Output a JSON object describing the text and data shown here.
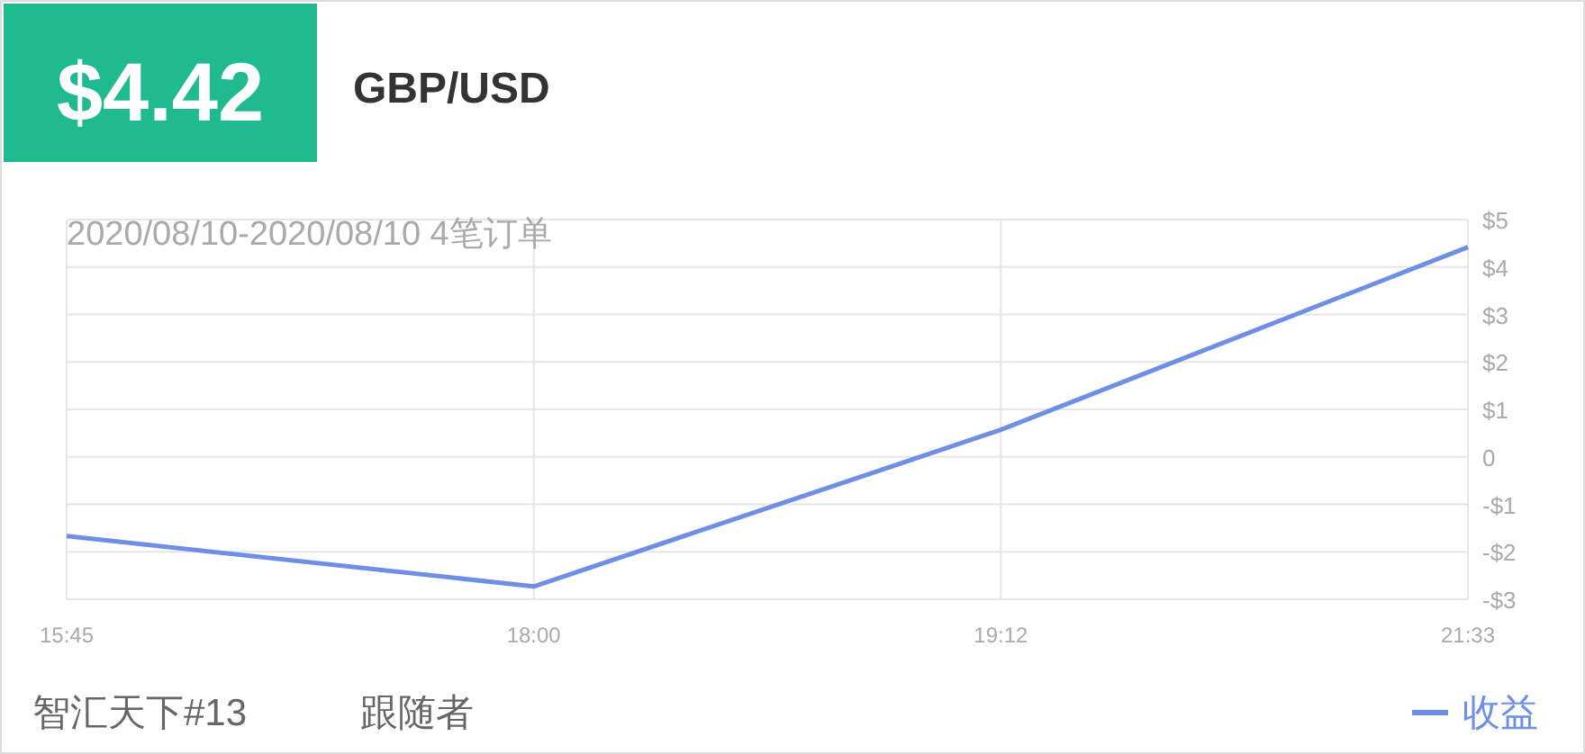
{
  "chart_data": {
    "type": "line",
    "title": "$4.42",
    "subtitle": "GBP/USD",
    "annotations": [
      "2020/08/10-2020/08/10 4笔订单",
      "智汇天下#13",
      "跟随者"
    ],
    "categories": [
      "15:45",
      "18:00",
      "19:12",
      "21:33"
    ],
    "series": [
      {
        "name": "收益",
        "color": "#6f8fe6",
        "values": [
          -1.67,
          -2.73,
          0.57,
          4.42
        ]
      }
    ],
    "ylim": [
      -3,
      5
    ],
    "yticks": [
      {
        "value": 5,
        "label": "$5"
      },
      {
        "value": 4,
        "label": "$4"
      },
      {
        "value": 3,
        "label": "$3"
      },
      {
        "value": 2,
        "label": "$2"
      },
      {
        "value": 1,
        "label": "$1"
      },
      {
        "value": 0,
        "label": "0"
      },
      {
        "value": -1,
        "label": "-$1"
      },
      {
        "value": -2,
        "label": "-$2"
      },
      {
        "value": -3,
        "label": "-$3"
      }
    ],
    "grid": true,
    "legend": "bottom right",
    "marker": "none",
    "line_style": "solid"
  }
}
